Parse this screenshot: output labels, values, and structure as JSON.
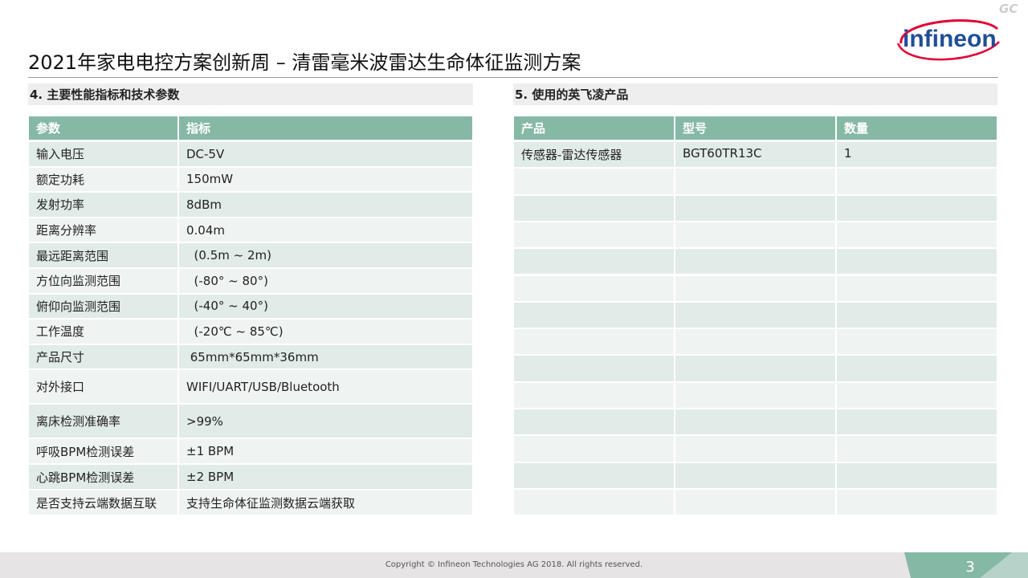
{
  "header": {
    "title": "2021年家电电控方案创新周 – 清雷毫米波雷达生命体征监测方案",
    "badge": "GC",
    "logo": "infineon"
  },
  "left": {
    "heading": "4. 主要性能指标和技术参数",
    "table": {
      "columns": [
        "参数",
        "指标"
      ],
      "rows": [
        [
          "输入电压",
          "DC-5V"
        ],
        [
          "额定功耗",
          "150mW"
        ],
        [
          "发射功率",
          "8dBm"
        ],
        [
          "距离分辨率",
          "0.04m"
        ],
        [
          "最远距离范围",
          "  (0.5m ~ 2m)"
        ],
        [
          "方位向监测范围",
          "  (-80° ~ 80°)"
        ],
        [
          "俯仰向监测范围",
          "  (-40° ~ 40°)"
        ],
        [
          "工作温度",
          "  (-20℃ ~ 85℃)"
        ],
        [
          "产品尺寸",
          " 65mm*65mm*36mm"
        ],
        [
          "对外接口",
          "WIFI/UART/USB/Bluetooth"
        ],
        [
          "离床检测准确率",
          ">99%"
        ],
        [
          "呼吸BPM检测误差",
          "±1 BPM"
        ],
        [
          "心跳BPM检测误差",
          "±2 BPM"
        ],
        [
          "是否支持云端数据互联",
          "支持生命体征监测数据云端获取"
        ]
      ]
    }
  },
  "right": {
    "heading": "5. 使用的英飞凌产品",
    "table": {
      "columns": [
        "产品",
        "型号",
        "数量"
      ],
      "rows": [
        [
          "传感器-雷达传感器",
          "BGT60TR13C",
          "1"
        ]
      ]
    }
  },
  "footer": {
    "copyright": "Copyright © Infineon Technologies AG 2018. All rights reserved.",
    "page": "3"
  }
}
